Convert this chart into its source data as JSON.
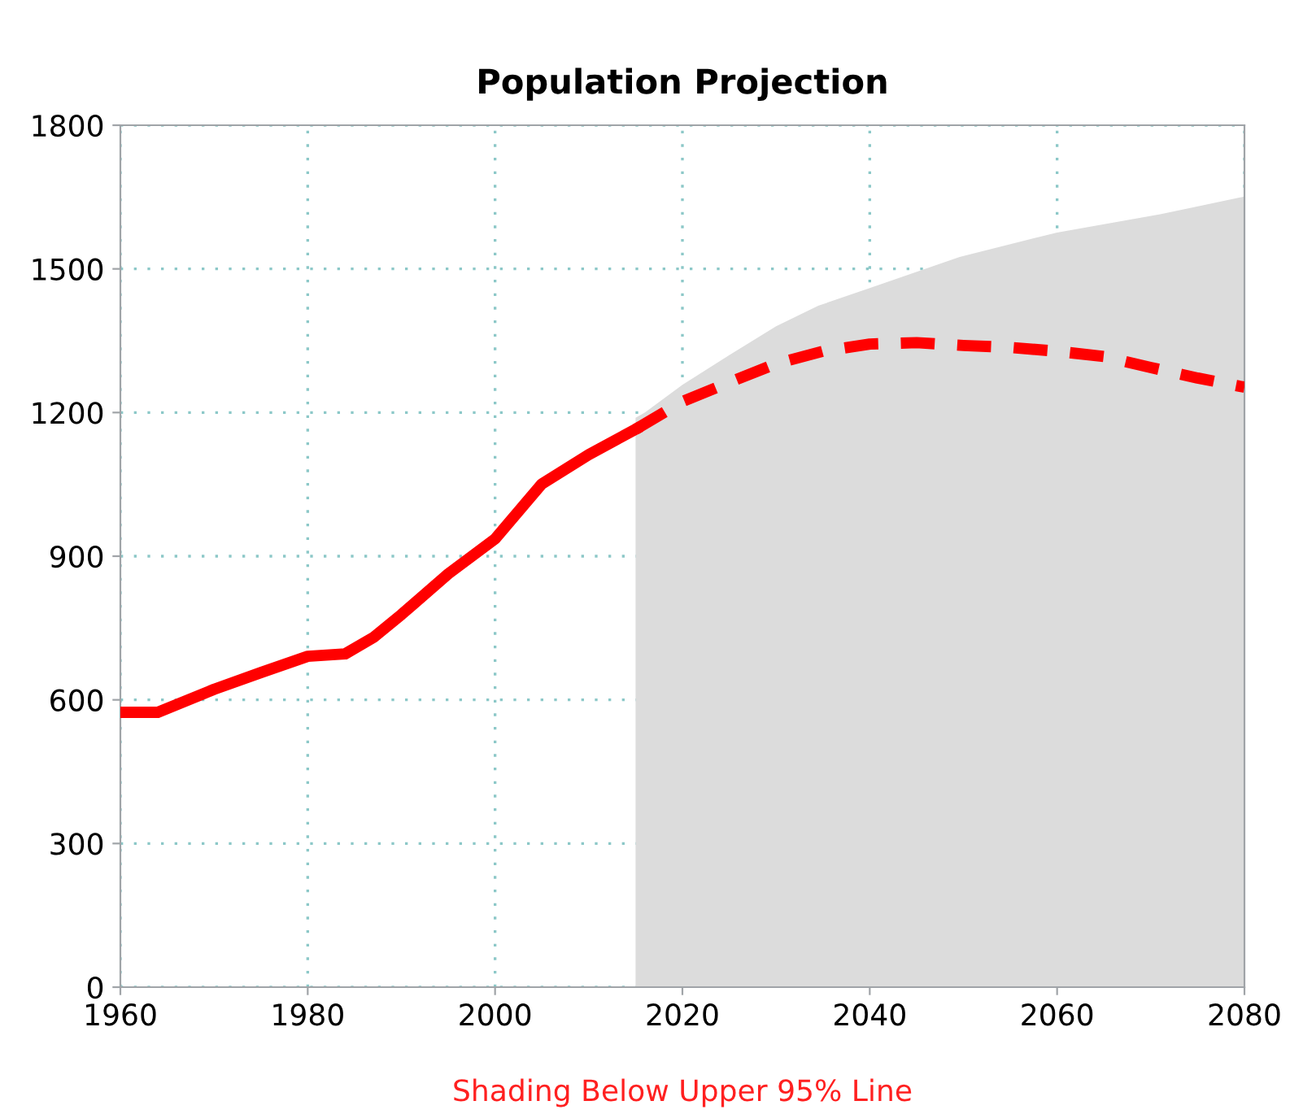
{
  "chart_data": {
    "type": "line",
    "title": "Population Projection",
    "annotations": [
      "Shading Below Upper 95% Line"
    ],
    "xlim": [
      1960,
      2080
    ],
    "xticks": [
      1960,
      1980,
      2000,
      2020,
      2040,
      2060,
      2080
    ],
    "ylim": [
      0,
      1800
    ],
    "yticks": [
      0,
      300,
      600,
      900,
      1200,
      1500,
      1800
    ],
    "grid": true,
    "series": [
      {
        "type": "area",
        "color": "#dcdcdc",
        "x": [
          2015,
          2016,
          2020,
          2025,
          2030,
          2034.5,
          2040,
          2049.6,
          2060,
          2071,
          2080
        ],
        "values": [
          1189,
          1200,
          1258,
          1320,
          1380,
          1423,
          1460,
          1525,
          1576,
          1614,
          1651
        ]
      },
      {
        "color": "#ff0000",
        "line_style": "solid",
        "x": [
          1960,
          1964,
          1970,
          1975,
          1980,
          1984,
          1987,
          1990,
          1995,
          2000,
          2005,
          2010,
          2015
        ],
        "values": [
          574,
          574,
          622,
          657,
          691,
          696,
          730,
          778,
          863,
          936,
          1051,
          1112,
          1165
        ]
      },
      {
        "color": "#ff0000",
        "line_style": "dashed",
        "x": [
          2015,
          2020,
          2025,
          2030,
          2035,
          2040,
          2045,
          2050,
          2055,
          2060,
          2065,
          2070,
          2075,
          2080
        ],
        "values": [
          1165,
          1223,
          1263,
          1302,
          1328,
          1343,
          1346,
          1340,
          1336,
          1328,
          1317,
          1294,
          1272,
          1253
        ]
      }
    ]
  }
}
